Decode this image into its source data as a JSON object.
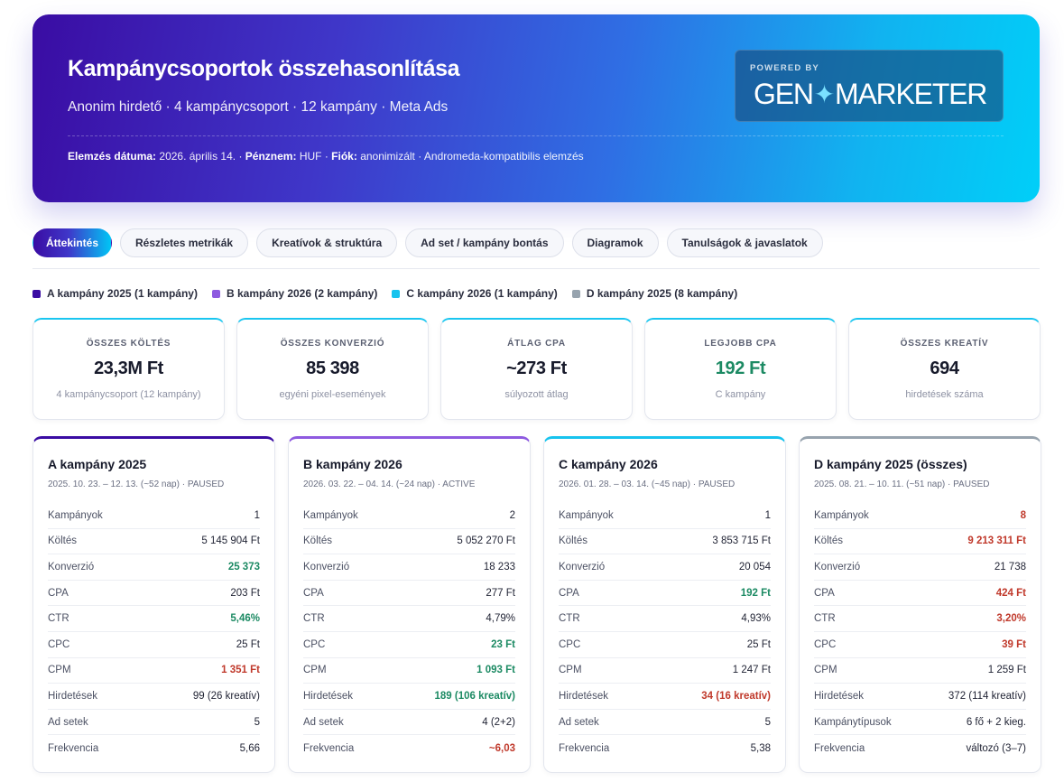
{
  "hero": {
    "title": "Kampánycsoportok összehasonlítása",
    "subtitle": "Anonim hirdető · 4 kampánycsoport · 12 kampány · Meta Ads",
    "meta": {
      "date_label": "Elemzés dátuma:",
      "date_value": "2026. április 14. ·",
      "currency_label": "Pénznem:",
      "currency_value": "HUF ·",
      "account_label": "Fiók:",
      "account_value": "anonimizált · Andromeda-kompatibilis elemzés"
    },
    "powered_by": {
      "label": "POWERED BY",
      "logo_left": "GEN",
      "logo_right": "MARKETER",
      "star_icon": "sparkle-icon"
    }
  },
  "tabs": [
    {
      "label": "Áttekintés",
      "active": true
    },
    {
      "label": "Részletes metrikák",
      "active": false
    },
    {
      "label": "Kreatívok & struktúra",
      "active": false
    },
    {
      "label": "Ad set / kampány bontás",
      "active": false
    },
    {
      "label": "Diagramok",
      "active": false
    },
    {
      "label": "Tanulságok & javaslatok",
      "active": false
    }
  ],
  "legend": [
    {
      "label": "A kampány 2025 (1 kampány)",
      "color": "#3a0ca3"
    },
    {
      "label": "B kampány 2026 (2 kampány)",
      "color": "#8e5ae0"
    },
    {
      "label": "C kampány 2026 (1 kampány)",
      "color": "#17c3ee"
    },
    {
      "label": "D kampány 2025 (8 kampány)",
      "color": "#97a3ae"
    }
  ],
  "kpis": [
    {
      "label": "ÖSSZES KÖLTÉS",
      "value": "23,3M Ft",
      "sub": "4 kampánycsoport (12 kampány)",
      "tone": ""
    },
    {
      "label": "ÖSSZES KONVERZIÓ",
      "value": "85 398",
      "sub": "egyéni pixel-események",
      "tone": ""
    },
    {
      "label": "ÁTLAG CPA",
      "value": "~273 Ft",
      "sub": "súlyozott átlag",
      "tone": ""
    },
    {
      "label": "LEGJOBB CPA",
      "value": "192 Ft",
      "sub": "C kampány",
      "tone": "green"
    },
    {
      "label": "ÖSSZES KREATÍV",
      "value": "694",
      "sub": "hirdetések száma",
      "tone": ""
    }
  ],
  "cards": [
    {
      "title": "A kampány 2025",
      "period": "2025. 10. 23. – 12. 13. (~52 nap) · PAUSED",
      "accent": "#3a0ca3",
      "rows": [
        {
          "label": "Kampányok",
          "value": "1",
          "tone": ""
        },
        {
          "label": "Költés",
          "value": "5 145 904 Ft",
          "tone": ""
        },
        {
          "label": "Konverzió",
          "value": "25 373",
          "tone": "green"
        },
        {
          "label": "CPA",
          "value": "203 Ft",
          "tone": ""
        },
        {
          "label": "CTR",
          "value": "5,46%",
          "tone": "green"
        },
        {
          "label": "CPC",
          "value": "25 Ft",
          "tone": ""
        },
        {
          "label": "CPM",
          "value": "1 351 Ft",
          "tone": "red"
        },
        {
          "label": "Hirdetések",
          "value": "99 (26 kreatív)",
          "tone": ""
        },
        {
          "label": "Ad setek",
          "value": "5",
          "tone": ""
        },
        {
          "label": "Frekvencia",
          "value": "5,66",
          "tone": ""
        }
      ]
    },
    {
      "title": "B kampány 2026",
      "period": "2026. 03. 22. – 04. 14. (~24 nap) · ACTIVE",
      "accent": "#8e5ae0",
      "rows": [
        {
          "label": "Kampányok",
          "value": "2",
          "tone": ""
        },
        {
          "label": "Költés",
          "value": "5 052 270 Ft",
          "tone": ""
        },
        {
          "label": "Konverzió",
          "value": "18 233",
          "tone": ""
        },
        {
          "label": "CPA",
          "value": "277 Ft",
          "tone": ""
        },
        {
          "label": "CTR",
          "value": "4,79%",
          "tone": ""
        },
        {
          "label": "CPC",
          "value": "23 Ft",
          "tone": "green"
        },
        {
          "label": "CPM",
          "value": "1 093 Ft",
          "tone": "green"
        },
        {
          "label": "Hirdetések",
          "value": "189 (106 kreatív)",
          "tone": "green"
        },
        {
          "label": "Ad setek",
          "value": "4 (2+2)",
          "tone": ""
        },
        {
          "label": "Frekvencia",
          "value": "~6,03",
          "tone": "red"
        }
      ]
    },
    {
      "title": "C kampány 2026",
      "period": "2026. 01. 28. – 03. 14. (~45 nap) · PAUSED",
      "accent": "#17c3ee",
      "rows": [
        {
          "label": "Kampányok",
          "value": "1",
          "tone": ""
        },
        {
          "label": "Költés",
          "value": "3 853 715 Ft",
          "tone": ""
        },
        {
          "label": "Konverzió",
          "value": "20 054",
          "tone": ""
        },
        {
          "label": "CPA",
          "value": "192 Ft",
          "tone": "green"
        },
        {
          "label": "CTR",
          "value": "4,93%",
          "tone": ""
        },
        {
          "label": "CPC",
          "value": "25 Ft",
          "tone": ""
        },
        {
          "label": "CPM",
          "value": "1 247 Ft",
          "tone": ""
        },
        {
          "label": "Hirdetések",
          "value": "34 (16 kreatív)",
          "tone": "red"
        },
        {
          "label": "Ad setek",
          "value": "5",
          "tone": ""
        },
        {
          "label": "Frekvencia",
          "value": "5,38",
          "tone": ""
        }
      ]
    },
    {
      "title": "D kampány 2025 (összes)",
      "period": "2025. 08. 21. – 10. 11. (~51 nap) · PAUSED",
      "accent": "#97a3ae",
      "rows": [
        {
          "label": "Kampányok",
          "value": "8",
          "tone": "red"
        },
        {
          "label": "Költés",
          "value": "9 213 311 Ft",
          "tone": "red"
        },
        {
          "label": "Konverzió",
          "value": "21 738",
          "tone": ""
        },
        {
          "label": "CPA",
          "value": "424 Ft",
          "tone": "red"
        },
        {
          "label": "CTR",
          "value": "3,20%",
          "tone": "red"
        },
        {
          "label": "CPC",
          "value": "39 Ft",
          "tone": "red"
        },
        {
          "label": "CPM",
          "value": "1 259 Ft",
          "tone": ""
        },
        {
          "label": "Hirdetések",
          "value": "372 (114 kreatív)",
          "tone": ""
        },
        {
          "label": "Kampánytípusok",
          "value": "6 fő + 2 kieg.",
          "tone": ""
        },
        {
          "label": "Frekvencia",
          "value": "változó (3–7)",
          "tone": ""
        }
      ]
    }
  ]
}
